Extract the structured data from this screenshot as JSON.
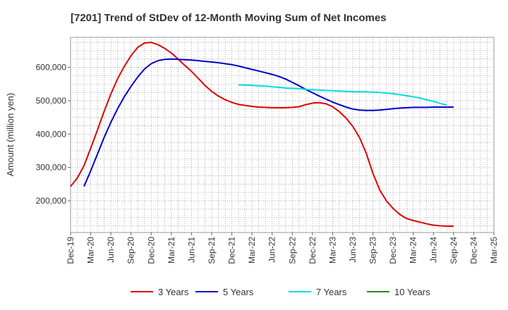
{
  "chart_data": {
    "type": "line",
    "title": "[7201]  Trend of StDev of 12-Month Moving Sum of Net Incomes",
    "ylabel": "Amount (million yen)",
    "xlabel": "",
    "ylim": [
      105000,
      690000
    ],
    "yticks": [
      200000,
      300000,
      400000,
      500000,
      600000
    ],
    "ytick_labels": [
      "200,000",
      "300,000",
      "400,000",
      "500,000",
      "600,000"
    ],
    "xtick_labels": [
      "Dec-19",
      "Mar-20",
      "Jun-20",
      "Sep-20",
      "Dec-20",
      "Mar-21",
      "Jun-21",
      "Sep-21",
      "Dec-21",
      "Mar-22",
      "Jun-22",
      "Sep-22",
      "Dec-22",
      "Mar-23",
      "Jun-23",
      "Sep-23",
      "Dec-23",
      "Mar-24",
      "Jun-24",
      "Sep-24",
      "Dec-24",
      "Mar-25"
    ],
    "grid": true,
    "legend_position": "bottom",
    "series": [
      {
        "name": "3 Years",
        "color": "#dd0000",
        "values": [
          243000,
          268000,
          305000,
          358000,
          412000,
          468000,
          520000,
          566000,
          603000,
          635000,
          660000,
          673000,
          675000,
          668000,
          657000,
          643000,
          625000,
          606000,
          588000,
          567000,
          546000,
          528000,
          514000,
          503000,
          495000,
          489000,
          486000,
          483000,
          481000,
          480000,
          479000,
          479000,
          479000,
          480000,
          482000,
          488000,
          493000,
          494000,
          491000,
          482000,
          467000,
          448000,
          423000,
          390000,
          343000,
          282000,
          233000,
          200000,
          177000,
          159000,
          147000,
          141000,
          136000,
          131000,
          127000,
          125000,
          124000,
          124000
        ]
      },
      {
        "name": "5 Years",
        "color": "#0000cc",
        "values": [
          null,
          null,
          243000,
          290000,
          340000,
          390000,
          435000,
          476000,
          512000,
          543000,
          571000,
          595000,
          611000,
          620000,
          624000,
          625000,
          624000,
          623000,
          622000,
          620000,
          618000,
          616000,
          614000,
          611000,
          608000,
          604000,
          599000,
          594000,
          589000,
          584000,
          579000,
          573000,
          565000,
          555000,
          545000,
          534000,
          524000,
          514000,
          505000,
          496000,
          488000,
          481000,
          475000,
          472000,
          471000,
          471000,
          472000,
          474000,
          476000,
          478000,
          479000,
          480000,
          480000,
          480000,
          481000,
          481000,
          481000,
          481000
        ]
      },
      {
        "name": "7 Years",
        "color": "#00dddd",
        "values": [
          null,
          null,
          null,
          null,
          null,
          null,
          null,
          null,
          null,
          null,
          null,
          null,
          null,
          null,
          null,
          null,
          null,
          null,
          null,
          null,
          null,
          null,
          null,
          null,
          null,
          548000,
          547000,
          546000,
          545000,
          544000,
          542000,
          540000,
          538000,
          537000,
          536000,
          534000,
          533000,
          532000,
          531000,
          530000,
          529000,
          528000,
          527000,
          527000,
          527000,
          526000,
          525000,
          523000,
          521000,
          518000,
          515000,
          512000,
          508000,
          503000,
          498000,
          492000,
          487000,
          null
        ]
      },
      {
        "name": "10 Years",
        "color": "#228822",
        "values": []
      }
    ]
  }
}
